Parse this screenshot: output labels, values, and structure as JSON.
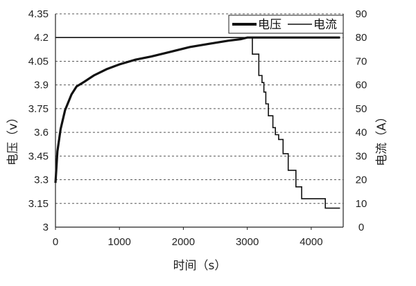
{
  "chart_data": {
    "type": "line",
    "xlabel": "时间（s）",
    "ylabel_left": "电压（v）",
    "ylabel_right": "电流（A）",
    "xlim": [
      0,
      4500
    ],
    "ylim_left": [
      3,
      4.35
    ],
    "ylim_right": [
      0,
      90
    ],
    "x_ticks": [
      "0",
      "1000",
      "2000",
      "3000",
      "4000"
    ],
    "x_tick_values": [
      0,
      1000,
      2000,
      3000,
      4000
    ],
    "y_left_ticks": [
      "3",
      "3.15",
      "3.3",
      "3.45",
      "3.6",
      "3.75",
      "3.9",
      "4.05",
      "4.2",
      "4.35"
    ],
    "y_left_tick_values": [
      3,
      3.15,
      3.3,
      3.45,
      3.6,
      3.75,
      3.9,
      4.05,
      4.2,
      4.35
    ],
    "y_right_ticks": [
      "0",
      "10",
      "20",
      "30",
      "40",
      "50",
      "60",
      "70",
      "80",
      "90"
    ],
    "y_right_tick_values": [
      0,
      10,
      20,
      30,
      40,
      50,
      60,
      70,
      80,
      90
    ],
    "grid": "horizontal dashed",
    "legend_position": "top-right",
    "legend": [
      "电压",
      "电流"
    ],
    "series": [
      {
        "name": "电压",
        "axis": "left",
        "x": [
          0,
          30,
          80,
          150,
          250,
          330,
          450,
          600,
          800,
          1000,
          1250,
          1500,
          1800,
          2100,
          2400,
          2700,
          2900,
          3000,
          3100,
          3500,
          4000,
          4450
        ],
        "values": [
          3.28,
          3.48,
          3.62,
          3.74,
          3.84,
          3.89,
          3.92,
          3.96,
          4.0,
          4.03,
          4.06,
          4.08,
          4.11,
          4.14,
          4.16,
          4.18,
          4.19,
          4.2,
          4.2,
          4.2,
          4.2,
          4.2
        ]
      },
      {
        "name": "电流",
        "axis": "right",
        "x": [
          0,
          2980,
          3000,
          3050,
          3080,
          3080,
          3180,
          3180,
          3230,
          3230,
          3260,
          3260,
          3290,
          3290,
          3330,
          3330,
          3400,
          3400,
          3440,
          3440,
          3490,
          3490,
          3560,
          3560,
          3640,
          3640,
          3760,
          3760,
          3850,
          3850,
          3990,
          3990,
          4220,
          4220,
          4450
        ],
        "values": [
          80,
          80,
          80,
          80,
          80,
          73,
          73,
          64,
          64,
          61,
          61,
          57,
          57,
          52,
          52,
          47,
          47,
          42,
          42,
          39,
          39,
          37,
          37,
          31,
          31,
          24,
          24,
          17,
          17,
          12,
          12,
          12,
          12,
          8,
          8
        ]
      }
    ]
  }
}
